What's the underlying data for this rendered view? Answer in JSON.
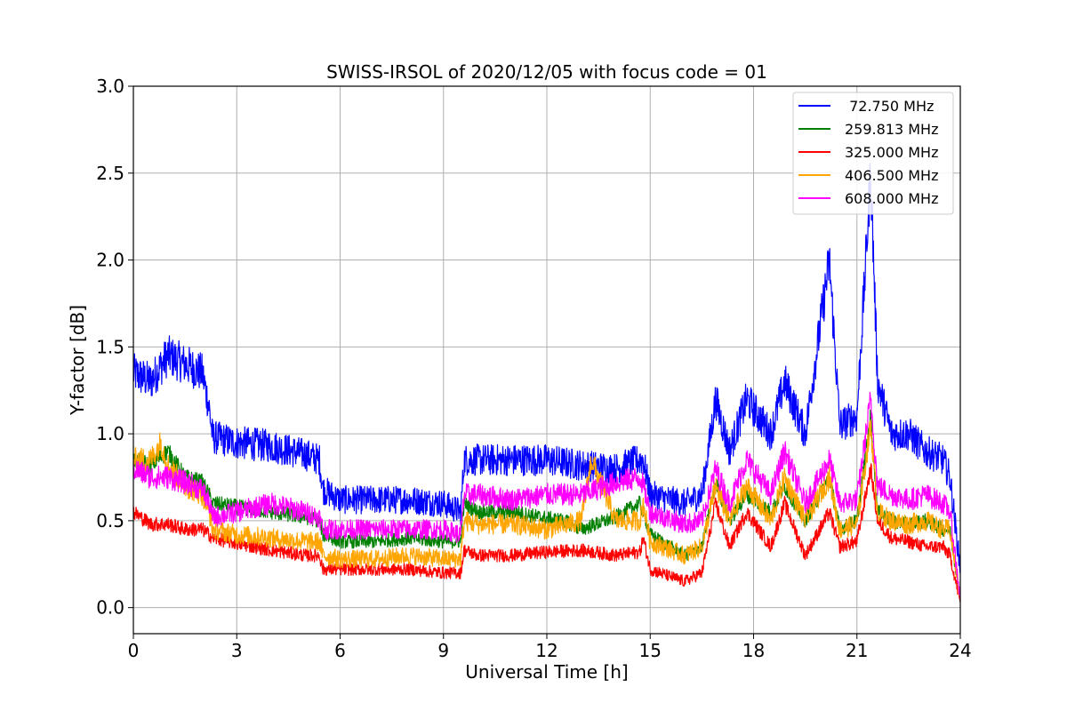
{
  "chart_data": {
    "type": "line",
    "title": "SWISS-IRSOL of 2020/12/05 with focus code = 01",
    "xlabel": "Universal Time [h]",
    "ylabel": "Y-factor [dB]",
    "xlim": [
      0,
      24
    ],
    "ylim": [
      -0.15,
      3.0
    ],
    "xticks": [
      0,
      3,
      6,
      9,
      12,
      15,
      18,
      21,
      24
    ],
    "xtick_labels": [
      "0",
      "3",
      "6",
      "9",
      "12",
      "15",
      "18",
      "21",
      "24"
    ],
    "yticks": [
      0.0,
      0.5,
      1.0,
      1.5,
      2.0,
      2.5,
      3.0
    ],
    "ytick_labels": [
      "0.0",
      "0.5",
      "1.0",
      "1.5",
      "2.0",
      "2.5",
      "3.0"
    ],
    "grid": true,
    "legend_position": "top-right",
    "series": [
      {
        "name": " 72.750 MHz",
        "color": "#0000ff",
        "x": [
          0,
          0.5,
          1.0,
          1.5,
          2.0,
          2.2,
          2.3,
          3,
          4,
          5,
          5.4,
          5.5,
          6,
          7,
          8,
          9,
          9.5,
          9.6,
          10,
          11,
          12,
          13,
          14,
          14.7,
          14.8,
          15,
          16,
          16.5,
          16.9,
          17.3,
          17.8,
          18.5,
          18.9,
          19.5,
          20.2,
          20.5,
          21,
          21.4,
          21.6,
          22,
          22.5,
          23,
          23.5,
          23.7,
          24
        ],
        "y": [
          1.35,
          1.3,
          1.45,
          1.4,
          1.35,
          1.15,
          0.98,
          0.95,
          0.93,
          0.88,
          0.85,
          0.68,
          0.62,
          0.62,
          0.62,
          0.6,
          0.55,
          0.85,
          0.85,
          0.85,
          0.85,
          0.82,
          0.8,
          0.85,
          0.85,
          0.65,
          0.6,
          0.65,
          1.2,
          0.9,
          1.2,
          1.0,
          1.3,
          1.0,
          2.0,
          1.05,
          1.1,
          2.5,
          1.3,
          1.0,
          1.0,
          0.9,
          0.85,
          0.75,
          0.22
        ]
      },
      {
        "name": "259.813 MHz",
        "color": "#008000",
        "x": [
          0,
          0.5,
          1.0,
          1.5,
          2.0,
          2.2,
          2.3,
          3,
          4,
          5,
          5.4,
          5.5,
          6,
          7,
          8,
          9,
          9.5,
          9.6,
          10,
          11,
          11.8,
          12.5,
          13,
          14,
          14.7,
          14.8,
          15,
          16,
          16.5,
          16.9,
          17.3,
          17.8,
          18.5,
          18.9,
          19.5,
          20.2,
          20.5,
          21,
          21.4,
          21.6,
          22,
          22.5,
          23,
          23.5,
          23.7,
          24
        ],
        "y": [
          0.85,
          0.82,
          0.9,
          0.75,
          0.72,
          0.65,
          0.6,
          0.58,
          0.55,
          0.52,
          0.5,
          0.42,
          0.38,
          0.38,
          0.4,
          0.38,
          0.38,
          0.6,
          0.55,
          0.55,
          0.52,
          0.5,
          0.45,
          0.52,
          0.6,
          0.55,
          0.42,
          0.3,
          0.35,
          0.72,
          0.5,
          0.65,
          0.55,
          0.7,
          0.5,
          0.75,
          0.45,
          0.5,
          1.1,
          0.55,
          0.5,
          0.48,
          0.5,
          0.45,
          0.45,
          0.05
        ]
      },
      {
        "name": "325.000 MHz",
        "color": "#ff0000",
        "x": [
          0,
          0.5,
          1.0,
          1.5,
          2.0,
          2.2,
          2.3,
          3,
          4,
          5,
          5.4,
          5.5,
          6,
          7,
          8,
          9,
          9.5,
          9.6,
          10,
          11,
          12,
          13,
          14,
          14.7,
          14.8,
          15,
          16,
          16.5,
          16.9,
          17.3,
          17.8,
          18.5,
          18.9,
          19.5,
          20.2,
          20.5,
          21,
          21.4,
          21.6,
          22,
          22.5,
          23,
          23.5,
          23.7,
          24
        ],
        "y": [
          0.55,
          0.48,
          0.48,
          0.45,
          0.45,
          0.42,
          0.4,
          0.37,
          0.33,
          0.3,
          0.3,
          0.22,
          0.22,
          0.22,
          0.22,
          0.2,
          0.2,
          0.33,
          0.3,
          0.3,
          0.32,
          0.33,
          0.3,
          0.32,
          0.4,
          0.22,
          0.15,
          0.2,
          0.6,
          0.35,
          0.55,
          0.35,
          0.6,
          0.3,
          0.55,
          0.35,
          0.38,
          0.8,
          0.5,
          0.4,
          0.38,
          0.35,
          0.35,
          0.3,
          0.03
        ]
      },
      {
        "name": "406.500 MHz",
        "color": "#ffa500",
        "x": [
          0,
          0.5,
          0.8,
          1.0,
          1.5,
          2.0,
          2.2,
          2.3,
          3,
          4,
          5,
          5.4,
          5.5,
          6,
          7,
          8,
          9,
          9.5,
          9.6,
          10,
          11,
          12,
          13,
          13.3,
          14,
          14.7,
          14.8,
          15,
          16,
          16.5,
          16.9,
          17.3,
          17.8,
          18.5,
          18.9,
          19.5,
          20.2,
          20.5,
          21,
          21.4,
          21.6,
          22,
          22.5,
          23,
          23.5,
          23.7,
          24
        ],
        "y": [
          0.85,
          0.85,
          0.95,
          0.82,
          0.7,
          0.65,
          0.55,
          0.45,
          0.42,
          0.4,
          0.38,
          0.38,
          0.3,
          0.28,
          0.28,
          0.3,
          0.28,
          0.28,
          0.5,
          0.48,
          0.48,
          0.45,
          0.5,
          0.85,
          0.5,
          0.5,
          0.6,
          0.38,
          0.3,
          0.35,
          0.7,
          0.5,
          0.7,
          0.5,
          0.75,
          0.5,
          0.75,
          0.45,
          0.48,
          1.05,
          0.55,
          0.5,
          0.48,
          0.5,
          0.45,
          0.45,
          0.05
        ]
      },
      {
        "name": "608.000 MHz",
        "color": "#ff00ff",
        "x": [
          0,
          0.5,
          1.0,
          1.5,
          2.0,
          2.2,
          2.3,
          3,
          4,
          5,
          5.4,
          5.5,
          6,
          7,
          8,
          9,
          9.5,
          9.6,
          10,
          11,
          12,
          13,
          14,
          14.7,
          14.8,
          15,
          16,
          16.5,
          16.9,
          17.3,
          17.8,
          18.5,
          18.9,
          19.5,
          20.2,
          20.5,
          21,
          21.4,
          21.6,
          22,
          22.5,
          23,
          23.5,
          23.7,
          24
        ],
        "y": [
          0.8,
          0.75,
          0.75,
          0.72,
          0.68,
          0.6,
          0.52,
          0.55,
          0.6,
          0.55,
          0.52,
          0.45,
          0.45,
          0.45,
          0.45,
          0.45,
          0.42,
          0.65,
          0.65,
          0.62,
          0.65,
          0.65,
          0.72,
          0.75,
          0.7,
          0.55,
          0.48,
          0.5,
          0.8,
          0.6,
          0.85,
          0.65,
          0.9,
          0.6,
          0.85,
          0.6,
          0.62,
          1.2,
          0.7,
          0.65,
          0.62,
          0.65,
          0.6,
          0.55,
          0.05
        ]
      }
    ]
  }
}
